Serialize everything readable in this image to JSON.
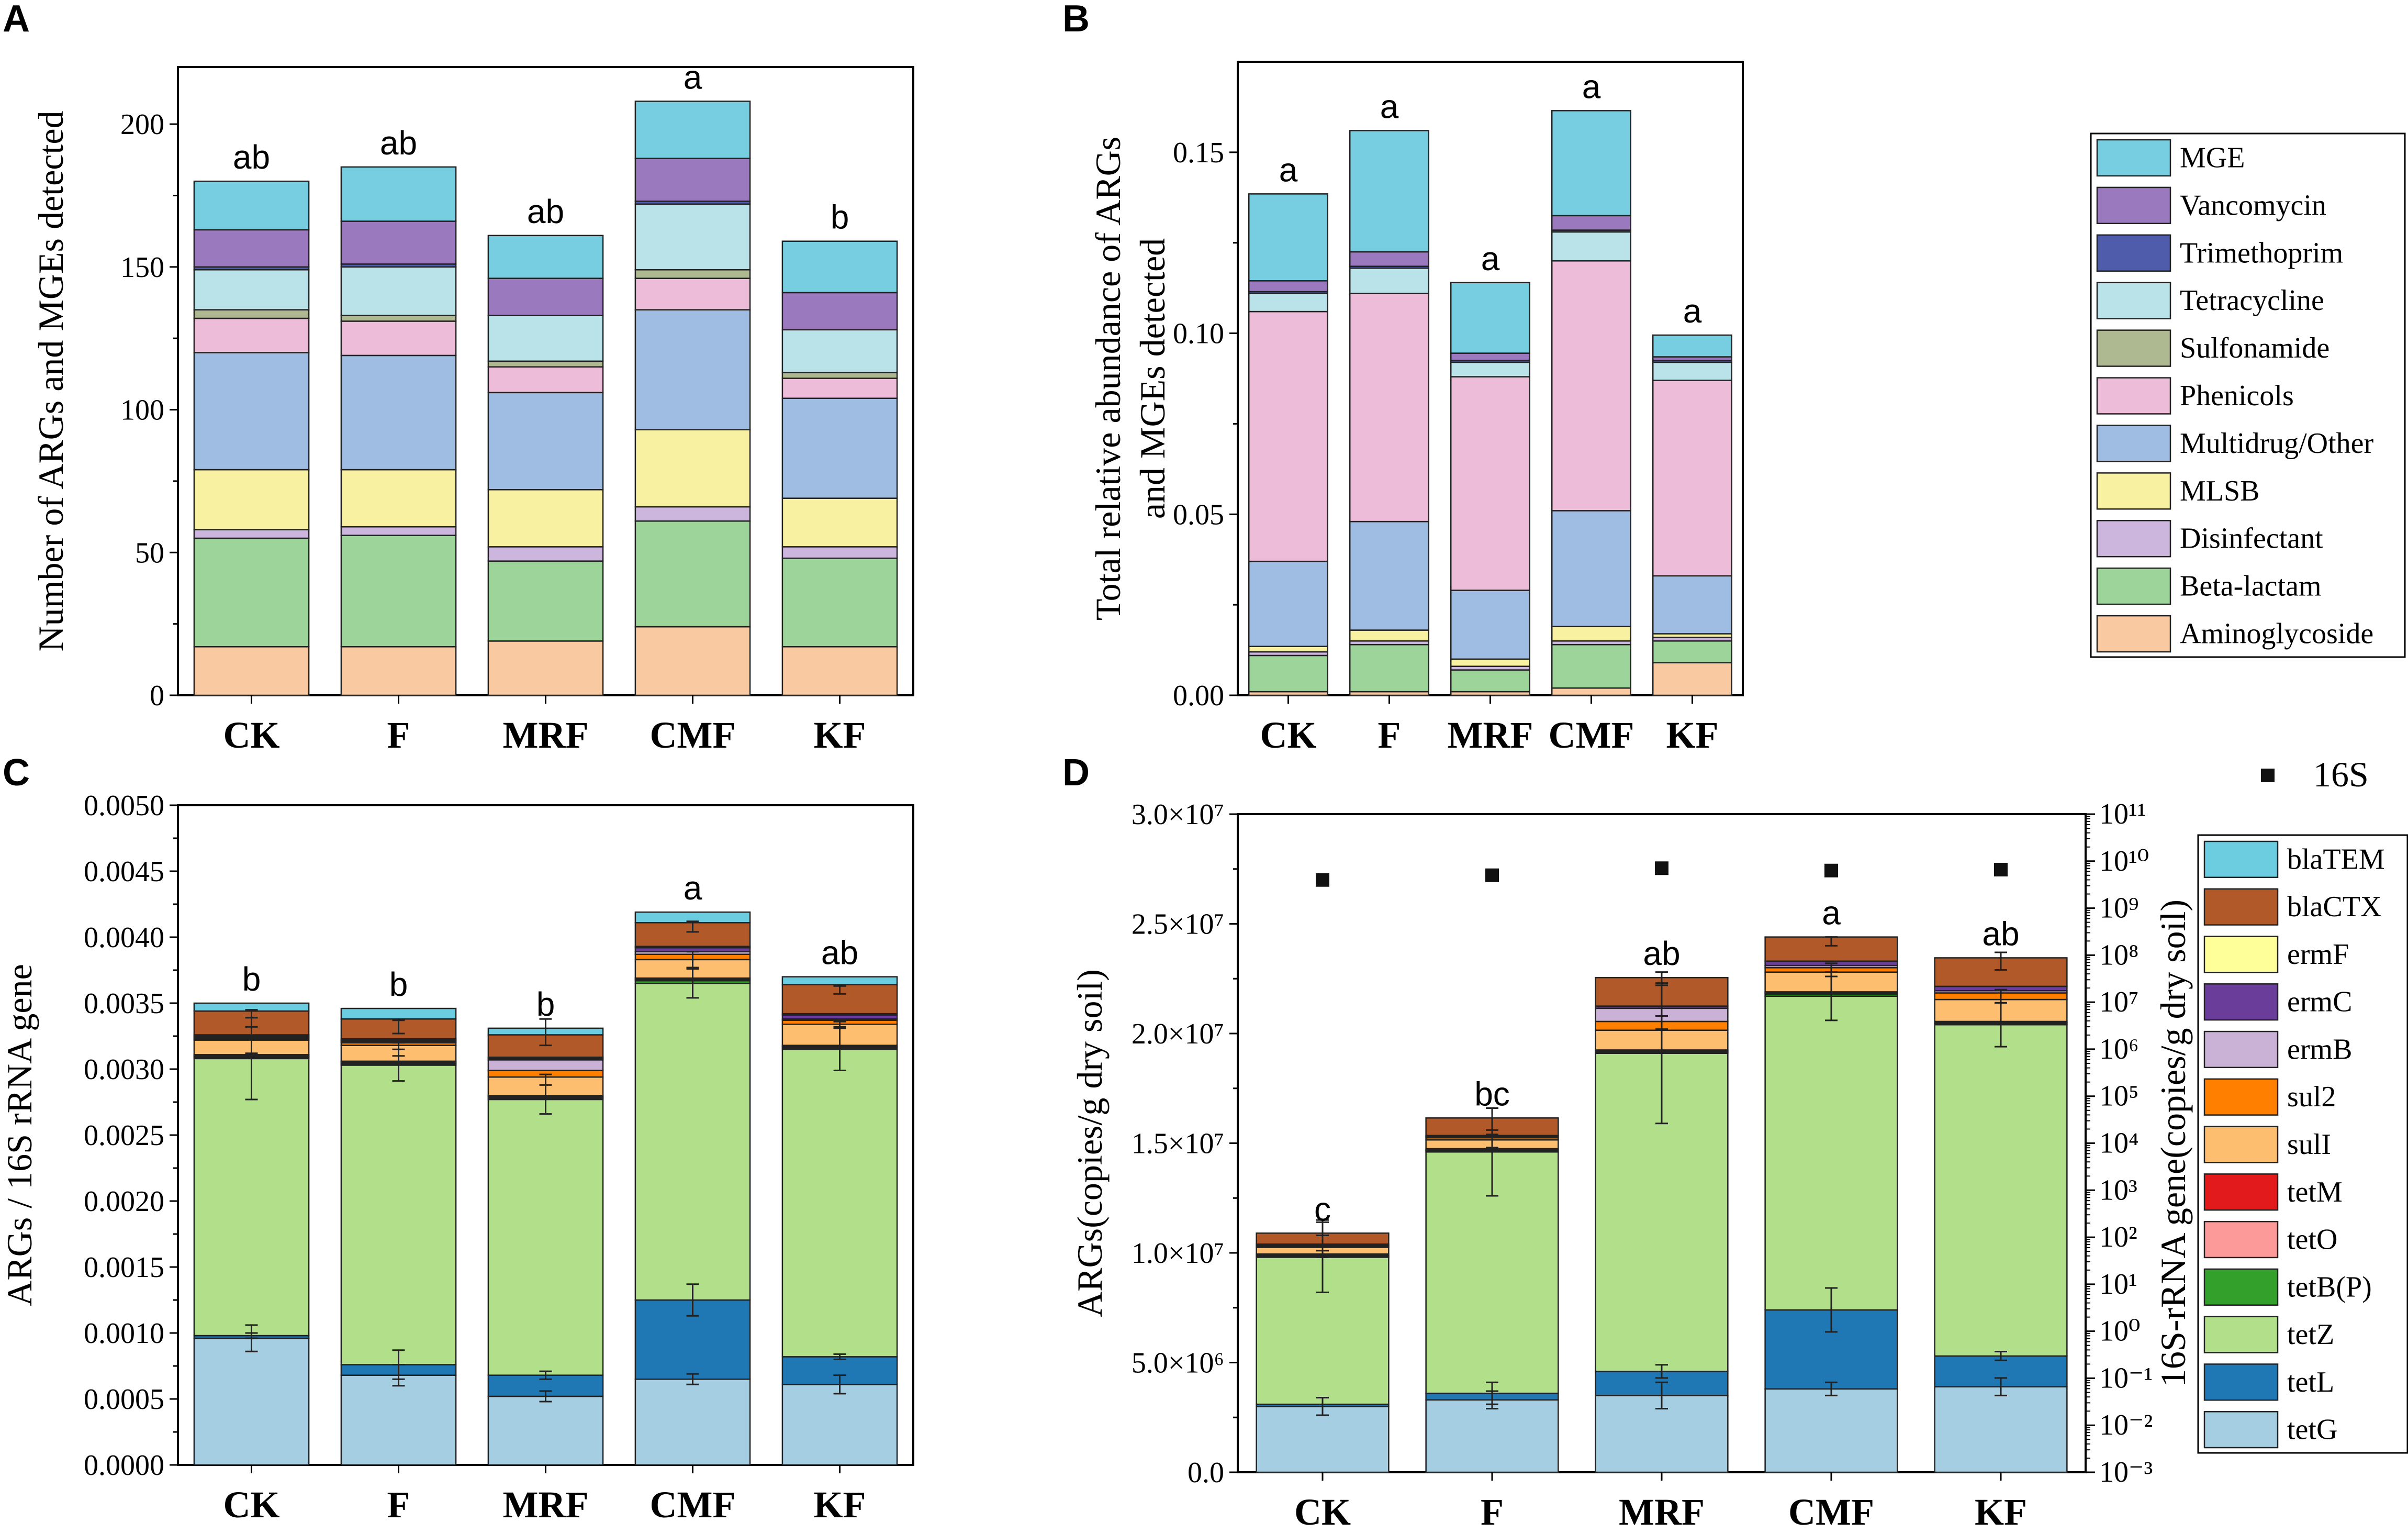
{
  "chart_data": [
    {
      "panel": "A",
      "type": "bar",
      "stacked": true,
      "title": "",
      "xlabel": "",
      "ylabel": "Number of ARGs and MGEs detected",
      "ylim": [
        0,
        220
      ],
      "yticks": [
        0,
        50,
        100,
        150,
        200
      ],
      "tick_labels": [
        "0",
        "50",
        "100",
        "150",
        "200"
      ],
      "categories": [
        "CK",
        "F",
        "MRF",
        "CMF",
        "KF"
      ],
      "significance": [
        "ab",
        "ab",
        "ab",
        "a",
        "b"
      ],
      "series": [
        {
          "name": "Aminoglycoside",
          "color": "#f9c9a1",
          "values": [
            17,
            17,
            19,
            24,
            17
          ]
        },
        {
          "name": "Beta-lactam",
          "color": "#9dd49a",
          "values": [
            38,
            39,
            28,
            37,
            31
          ]
        },
        {
          "name": "Disinfectant",
          "color": "#cdb6de",
          "values": [
            3,
            3,
            5,
            5,
            4
          ]
        },
        {
          "name": "MLSB",
          "color": "#f7f1a1",
          "values": [
            21,
            20,
            20,
            27,
            17
          ]
        },
        {
          "name": "Multidrug/Other",
          "color": "#9fbde3",
          "values": [
            41,
            40,
            34,
            42,
            35
          ]
        },
        {
          "name": "Phenicols",
          "color": "#edbcd8",
          "values": [
            12,
            12,
            9,
            11,
            7
          ]
        },
        {
          "name": "Sulfonamide",
          "color": "#aeb891",
          "values": [
            3,
            2,
            2,
            3,
            2
          ]
        },
        {
          "name": "Tetracycline",
          "color": "#b9e2e9",
          "values": [
            14,
            17,
            16,
            23,
            15
          ]
        },
        {
          "name": "Trimethoprim",
          "color": "#4e5cab",
          "values": [
            1,
            1,
            0,
            1,
            0
          ]
        },
        {
          "name": "Vancomycin",
          "color": "#9b79be",
          "values": [
            13,
            15,
            13,
            15,
            13
          ]
        },
        {
          "name": "MGE",
          "color": "#76cee0",
          "values": [
            17,
            19,
            15,
            20,
            18
          ]
        }
      ]
    },
    {
      "panel": "B",
      "type": "bar",
      "stacked": true,
      "title": "",
      "xlabel": "",
      "ylabel_lines": [
        "Total relative abundance of ARGs",
        "and MGEs detected"
      ],
      "ylim": [
        0,
        0.175
      ],
      "yticks": [
        0,
        0.05,
        0.1,
        0.15
      ],
      "tick_labels": [
        "0.00",
        "0.05",
        "0.10",
        "0.15"
      ],
      "categories": [
        "CK",
        "F",
        "MRF",
        "CMF",
        "KF"
      ],
      "significance": [
        "a",
        "a",
        "a",
        "a",
        "a"
      ],
      "legend_position": "right",
      "series": [
        {
          "name": "Aminoglycoside",
          "color": "#f9c9a1",
          "values": [
            0.001,
            0.001,
            0.001,
            0.002,
            0.009
          ]
        },
        {
          "name": "Beta-lactam",
          "color": "#9dd49a",
          "values": [
            0.01,
            0.013,
            0.006,
            0.012,
            0.006
          ]
        },
        {
          "name": "Disinfectant",
          "color": "#cdb6de",
          "values": [
            0.001,
            0.001,
            0.001,
            0.001,
            0.001
          ]
        },
        {
          "name": "MLSB",
          "color": "#f7f1a1",
          "values": [
            0.0015,
            0.003,
            0.002,
            0.004,
            0.001
          ]
        },
        {
          "name": "Multidrug/Other",
          "color": "#9fbde3",
          "values": [
            0.0235,
            0.03,
            0.019,
            0.032,
            0.016
          ]
        },
        {
          "name": "Phenicols",
          "color": "#edbcd8",
          "values": [
            0.069,
            0.063,
            0.059,
            0.069,
            0.054
          ]
        },
        {
          "name": "Sulfonamide",
          "color": "#aeb891",
          "values": [
            0,
            0,
            0,
            0,
            0
          ]
        },
        {
          "name": "Tetracycline",
          "color": "#b9e2e9",
          "values": [
            0.005,
            0.007,
            0.004,
            0.008,
            0.005
          ]
        },
        {
          "name": "Trimethoprim",
          "color": "#4e5cab",
          "values": [
            0.0005,
            0.0005,
            0.0005,
            0.0005,
            0.0005
          ]
        },
        {
          "name": "Vancomycin",
          "color": "#9b79be",
          "values": [
            0.003,
            0.004,
            0.002,
            0.004,
            0.001
          ]
        },
        {
          "name": "MGE",
          "color": "#76cee0",
          "values": [
            0.024,
            0.0335,
            0.0195,
            0.029,
            0.006
          ]
        }
      ]
    },
    {
      "panel": "C",
      "type": "bar",
      "stacked": true,
      "title": "",
      "xlabel": "",
      "ylabel": "ARGs / 16S rRNA gene",
      "ylim": [
        0,
        0.005
      ],
      "yticks": [
        0,
        0.0005,
        0.001,
        0.0015,
        0.002,
        0.0025,
        0.003,
        0.0035,
        0.004,
        0.0045,
        0.005
      ],
      "tick_labels": [
        "0.0000",
        "0.0005",
        "0.0010",
        "0.0015",
        "0.0020",
        "0.0025",
        "0.0030",
        "0.0035",
        "0.0040",
        "0.0045",
        "0.0050"
      ],
      "categories": [
        "CK",
        "F",
        "MRF",
        "CMF",
        "KF"
      ],
      "significance": [
        "b",
        "b",
        "b",
        "a",
        "ab"
      ],
      "series": [
        {
          "name": "tetG",
          "color": "#a6cee3",
          "values": [
            0.00096,
            0.00068,
            0.00052,
            0.00065,
            0.00061
          ]
        },
        {
          "name": "tetL",
          "color": "#1f78b4",
          "values": [
            2e-05,
            8e-05,
            0.00016,
            0.0006,
            0.00021
          ]
        },
        {
          "name": "tetZ",
          "color": "#b2df8a",
          "values": [
            0.0021,
            0.00227,
            0.00209,
            0.0024,
            0.00233
          ]
        },
        {
          "name": "tetB(P)",
          "color": "#33a02c",
          "values": [
            1e-05,
            1e-05,
            1e-05,
            2e-05,
            1e-05
          ]
        },
        {
          "name": "tetO",
          "color": "#fb9a99",
          "values": [
            1e-05,
            1e-05,
            1e-05,
            1e-05,
            1e-05
          ]
        },
        {
          "name": "tetM",
          "color": "#e31a1c",
          "values": [
            1e-05,
            1e-05,
            1e-05,
            1e-05,
            1e-05
          ]
        },
        {
          "name": "sulI",
          "color": "#fdbf6f",
          "values": [
            0.00011,
            0.00012,
            0.00014,
            0.00014,
            0.00016
          ]
        },
        {
          "name": "sul2",
          "color": "#ff7f00",
          "values": [
            1e-05,
            2e-05,
            5e-05,
            4e-05,
            3e-05
          ]
        },
        {
          "name": "ermB",
          "color": "#cab2d6",
          "values": [
            1e-05,
            1e-05,
            8e-05,
            2e-05,
            1e-05
          ]
        },
        {
          "name": "ermC",
          "color": "#6a3d9a",
          "values": [
            1e-05,
            1e-05,
            1e-05,
            3e-05,
            3e-05
          ]
        },
        {
          "name": "ermF",
          "color": "#ffff99",
          "values": [
            1e-05,
            1e-05,
            1e-05,
            1e-05,
            1e-05
          ]
        },
        {
          "name": "blaCTX",
          "color": "#b15928",
          "values": [
            0.00018,
            0.00015,
            0.00017,
            0.00018,
            0.00022
          ]
        },
        {
          "name": "blaTEM",
          "color": "#6ccde0",
          "values": [
            6e-05,
            8e-05,
            5e-05,
            8e-05,
            6e-05
          ]
        }
      ],
      "error_bars": [
        {
          "series": "tetG",
          "means": [
            0.00096,
            0.00068,
            0.00052,
            0.00065,
            0.00061
          ],
          "errors": [
            0.0001,
            8e-05,
            4e-05,
            4e-05,
            7e-05
          ]
        },
        {
          "series": "tetL",
          "means": [
            0.00098,
            0.00076,
            0.00068,
            0.00125,
            0.00082
          ],
          "errors": [
            2e-05,
            0.00011,
            3e-05,
            0.00012,
            2e-05
          ]
        },
        {
          "series": "tetZ",
          "means": [
            0.00308,
            0.00303,
            0.00277,
            0.00365,
            0.00315
          ],
          "errors": [
            0.00031,
            0.00012,
            0.00011,
            0.00011,
            0.00016
          ]
        },
        {
          "series": "sulI",
          "means": [
            0.00322,
            0.00315,
            0.00292,
            0.00383,
            0.00334
          ],
          "errors": [
            0.0001,
            5e-05,
            4e-05,
            6e-05,
            2e-05
          ]
        },
        {
          "series": "blaCTX",
          "means": [
            0.00342,
            0.00332,
            0.00328,
            0.00408,
            0.0036
          ],
          "errors": [
            3e-05,
            5e-05,
            0.0001,
            4e-05,
            3e-05
          ]
        }
      ]
    },
    {
      "panel": "D",
      "type": "bar",
      "stacked": true,
      "title": "",
      "xlabel": "",
      "ylabel": "ARGs(copies/g dry soil)",
      "y2label": "16S-rRNA gene(copies/g dry soil)",
      "ylim": [
        0,
        30000000
      ],
      "yticks": [
        0,
        5000000,
        10000000,
        15000000,
        20000000,
        25000000,
        30000000
      ],
      "tick_labels": [
        "0.0",
        "5.0×10⁶",
        "1.0×10⁷",
        "1.5×10⁷",
        "2.0×10⁷",
        "2.5×10⁷",
        "3.0×10⁷"
      ],
      "y2_scale": "log",
      "y2_range_exponents": [
        -3,
        11
      ],
      "y2_tick_labels": [
        "10⁻³",
        "10⁻²",
        "10⁻¹",
        "10⁰",
        "10¹",
        "10²",
        "10³",
        "10⁴",
        "10⁵",
        "10⁶",
        "10⁷",
        "10⁸",
        "10⁹",
        "10¹⁰",
        "10¹¹"
      ],
      "categories": [
        "CK",
        "F",
        "MRF",
        "CMF",
        "KF"
      ],
      "significance": [
        "c",
        "bc",
        "ab",
        "a",
        "ab"
      ],
      "legend_position": "right",
      "scatter_16S": {
        "name": "16S",
        "log10_values": [
          9.6,
          9.7,
          9.85,
          9.8,
          9.82
        ]
      },
      "series": [
        {
          "name": "tetG",
          "color": "#a6cee3",
          "values": [
            3000000,
            3300000,
            3500000,
            3800000,
            3900000
          ]
        },
        {
          "name": "tetL",
          "color": "#1f78b4",
          "values": [
            100000,
            300000,
            1100000,
            3600000,
            1400000
          ]
        },
        {
          "name": "tetZ",
          "color": "#b2df8a",
          "values": [
            6700000,
            11000000,
            14500000,
            14300000,
            15100000
          ]
        },
        {
          "name": "tetB(P)",
          "color": "#33a02c",
          "values": [
            50000,
            50000,
            50000,
            100000,
            50000
          ]
        },
        {
          "name": "tetO",
          "color": "#fb9a99",
          "values": [
            50000,
            50000,
            50000,
            50000,
            50000
          ]
        },
        {
          "name": "tetM",
          "color": "#e31a1c",
          "values": [
            50000,
            50000,
            50000,
            50000,
            50000
          ]
        },
        {
          "name": "sulI",
          "color": "#fdbf6f",
          "values": [
            300000,
            400000,
            900000,
            900000,
            1000000
          ]
        },
        {
          "name": "sul2",
          "color": "#ff7f00",
          "values": [
            50000,
            100000,
            400000,
            200000,
            300000
          ]
        },
        {
          "name": "ermB",
          "color": "#cab2d6",
          "values": [
            50000,
            50000,
            600000,
            100000,
            100000
          ]
        },
        {
          "name": "ermC",
          "color": "#6a3d9a",
          "values": [
            50000,
            50000,
            100000,
            200000,
            200000
          ]
        },
        {
          "name": "ermF",
          "color": "#ffff99",
          "values": [
            0,
            0,
            0,
            0,
            0
          ]
        },
        {
          "name": "blaCTX",
          "color": "#b15928",
          "values": [
            500000,
            800000,
            1300000,
            1100000,
            1300000
          ]
        },
        {
          "name": "blaTEM",
          "color": "#6ccde0",
          "values": [
            0,
            0,
            0,
            0,
            0
          ]
        }
      ],
      "error_bars": [
        {
          "series": "tetG",
          "means": [
            3000000,
            3300000,
            3500000,
            3800000,
            3900000
          ],
          "errors": [
            400000,
            400000,
            600000,
            300000,
            400000
          ]
        },
        {
          "series": "tetL",
          "means": [
            3100000,
            3600000,
            4600000,
            7400000,
            5300000
          ],
          "errors": [
            0,
            500000,
            300000,
            1000000,
            200000
          ]
        },
        {
          "series": "tetZ",
          "means": [
            9800000,
            14600000,
            19100000,
            21700000,
            20400000
          ],
          "errors": [
            1600000,
            2000000,
            3200000,
            1100000,
            1000000
          ]
        },
        {
          "series": "sulI",
          "means": [
            10300000,
            15200000,
            20500000,
            22900000,
            21700000
          ],
          "errors": [
            500000,
            400000,
            300000,
            300000,
            300000
          ]
        },
        {
          "series": "blaCTX",
          "means": [
            10800000,
            16000000,
            22500000,
            24200000,
            23300000
          ],
          "errors": [
            700000,
            600000,
            300000,
            200000,
            400000
          ]
        }
      ]
    }
  ]
}
